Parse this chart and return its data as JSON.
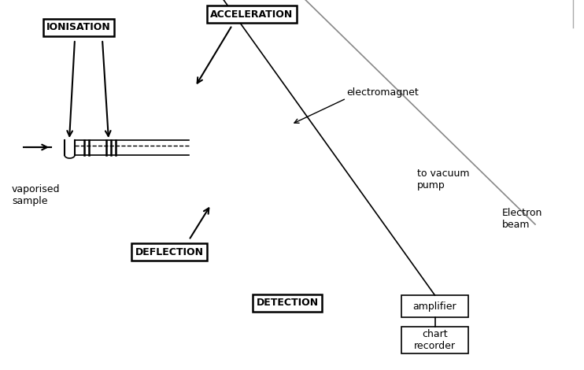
{
  "bg_color": "#ffffff",
  "magnet_color": "#c8813a",
  "magnet_edge": "#8b5a1a",
  "line_color": "#000000",
  "beam_colors": [
    "#0000cc",
    "#cc0000",
    "#008800"
  ],
  "labels": {
    "ionisation": "IONISATION",
    "acceleration": "ACCELERATION",
    "deflection": "DEFLECTION",
    "detection": "DETECTION",
    "electromagnet": "electromagnet",
    "vacuum": "to vacuum\npump",
    "electron_beam": "Electron\nbeam",
    "vaporised": "vaporised\nsample",
    "amplifier": "amplifier",
    "chart_recorder": "chart\nrecorder"
  },
  "figsize": [
    7.42,
    4.7
  ],
  "dpi": 100
}
